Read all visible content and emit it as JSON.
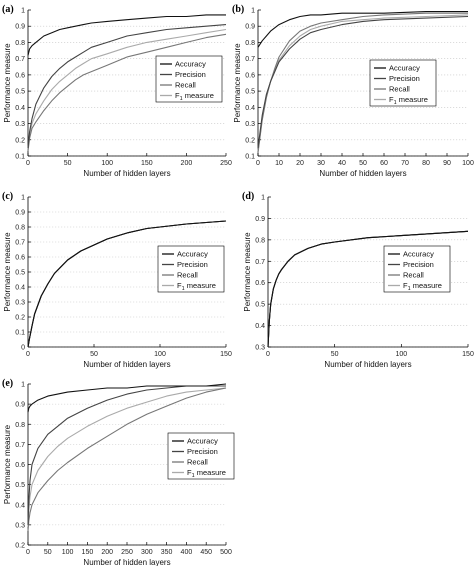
{
  "chart_data": [
    {
      "panel": "(a)",
      "type": "line",
      "xlabel": "Number of hidden layers",
      "ylabel": "Performance measure",
      "xlim": [
        0,
        250
      ],
      "ylim": [
        0.1,
        1.0
      ],
      "xticks": [
        "0",
        "50",
        "100",
        "150",
        "200",
        "250"
      ],
      "yticks": [
        "0.1",
        "0.2",
        "0.3",
        "0.4",
        "0.5",
        "0.6",
        "0.7",
        "0.8",
        "0.9",
        "1"
      ],
      "grid": "horizontal dotted",
      "legend": "right",
      "series": [
        {
          "name": "Accuracy",
          "color": "#111111",
          "x": [
            0,
            2,
            5,
            10,
            20,
            30,
            40,
            50,
            60,
            70,
            80,
            100,
            125,
            150,
            175,
            200,
            225,
            250
          ],
          "y": [
            0.72,
            0.76,
            0.78,
            0.8,
            0.84,
            0.86,
            0.88,
            0.89,
            0.9,
            0.91,
            0.92,
            0.93,
            0.94,
            0.95,
            0.96,
            0.96,
            0.97,
            0.97
          ]
        },
        {
          "name": "Precision",
          "color": "#444444",
          "x": [
            0,
            2,
            5,
            10,
            20,
            30,
            40,
            50,
            60,
            70,
            80,
            100,
            125,
            150,
            175,
            200,
            225,
            250
          ],
          "y": [
            0.15,
            0.25,
            0.33,
            0.42,
            0.52,
            0.59,
            0.64,
            0.68,
            0.71,
            0.74,
            0.77,
            0.8,
            0.84,
            0.86,
            0.88,
            0.89,
            0.9,
            0.91
          ]
        },
        {
          "name": "Recall",
          "color": "#777777",
          "x": [
            0,
            2,
            5,
            10,
            20,
            30,
            40,
            50,
            60,
            70,
            80,
            100,
            125,
            150,
            175,
            200,
            225,
            250
          ],
          "y": [
            0.13,
            0.21,
            0.27,
            0.31,
            0.38,
            0.44,
            0.49,
            0.53,
            0.57,
            0.6,
            0.62,
            0.66,
            0.71,
            0.74,
            0.77,
            0.8,
            0.83,
            0.85
          ]
        },
        {
          "name": "F1 measure",
          "color": "#aaaaaa",
          "x": [
            0,
            2,
            5,
            10,
            20,
            30,
            40,
            50,
            60,
            70,
            80,
            100,
            125,
            150,
            175,
            200,
            225,
            250
          ],
          "y": [
            0.14,
            0.23,
            0.3,
            0.36,
            0.44,
            0.51,
            0.56,
            0.6,
            0.64,
            0.67,
            0.7,
            0.73,
            0.77,
            0.8,
            0.82,
            0.84,
            0.86,
            0.88
          ]
        }
      ]
    },
    {
      "panel": "(b)",
      "type": "line",
      "xlabel": "Number of hidden layers",
      "ylabel": "Performance measure",
      "xlim": [
        0,
        100
      ],
      "ylim": [
        0.1,
        1.0
      ],
      "xticks": [
        "0",
        "10",
        "20",
        "30",
        "40",
        "50",
        "60",
        "70",
        "80",
        "90",
        "100"
      ],
      "yticks": [
        "0.1",
        "0.2",
        "0.3",
        "0.4",
        "0.5",
        "0.6",
        "0.7",
        "0.8",
        "0.9",
        "1"
      ],
      "grid": "horizontal dotted",
      "legend": "right",
      "series": [
        {
          "name": "Accuracy",
          "color": "#111111",
          "x": [
            0,
            1,
            2,
            4,
            6,
            8,
            10,
            15,
            20,
            25,
            30,
            40,
            50,
            60,
            80,
            100
          ],
          "y": [
            0.77,
            0.79,
            0.81,
            0.84,
            0.87,
            0.89,
            0.91,
            0.94,
            0.96,
            0.97,
            0.97,
            0.98,
            0.98,
            0.98,
            0.99,
            0.99
          ]
        },
        {
          "name": "Precision",
          "color": "#444444",
          "x": [
            0,
            1,
            2,
            4,
            6,
            8,
            10,
            15,
            20,
            25,
            30,
            40,
            50,
            60,
            80,
            100
          ],
          "y": [
            0.15,
            0.25,
            0.35,
            0.48,
            0.56,
            0.62,
            0.68,
            0.76,
            0.82,
            0.86,
            0.88,
            0.91,
            0.93,
            0.94,
            0.95,
            0.96
          ]
        },
        {
          "name": "Recall",
          "color": "#777777",
          "x": [
            0,
            1,
            2,
            4,
            6,
            8,
            10,
            15,
            20,
            25,
            30,
            40,
            50,
            60,
            80,
            100
          ],
          "y": [
            0.12,
            0.22,
            0.32,
            0.46,
            0.56,
            0.64,
            0.71,
            0.81,
            0.87,
            0.9,
            0.92,
            0.94,
            0.96,
            0.97,
            0.98,
            0.98
          ]
        },
        {
          "name": "F1 measure",
          "color": "#aaaaaa",
          "x": [
            0,
            1,
            2,
            4,
            6,
            8,
            10,
            15,
            20,
            25,
            30,
            40,
            50,
            60,
            80,
            100
          ],
          "y": [
            0.13,
            0.23,
            0.33,
            0.47,
            0.56,
            0.63,
            0.69,
            0.78,
            0.84,
            0.88,
            0.9,
            0.93,
            0.94,
            0.95,
            0.96,
            0.97
          ]
        }
      ]
    },
    {
      "panel": "(c)",
      "type": "line",
      "xlabel": "Number of hidden layers",
      "ylabel": "Performance measure",
      "xlim": [
        0,
        150
      ],
      "ylim": [
        0.0,
        1.0
      ],
      "xticks": [
        "0",
        "50",
        "100",
        "150"
      ],
      "yticks": [
        "0",
        "0.1",
        "0.2",
        "0.3",
        "0.4",
        "0.5",
        "0.6",
        "0.7",
        "0.8",
        "0.9",
        "1"
      ],
      "grid": "horizontal dotted",
      "legend": "right",
      "series": [
        {
          "name": "Accuracy",
          "color": "#111111",
          "x": [
            0,
            1,
            3,
            5,
            10,
            15,
            20,
            30,
            40,
            50,
            60,
            75,
            90,
            100,
            120,
            150
          ],
          "y": [
            0.0,
            0.05,
            0.14,
            0.22,
            0.34,
            0.42,
            0.49,
            0.58,
            0.64,
            0.68,
            0.72,
            0.76,
            0.79,
            0.8,
            0.82,
            0.84
          ]
        },
        {
          "name": "Precision",
          "color": "#444444",
          "x": [
            0,
            1,
            3,
            5,
            10,
            15,
            20,
            30,
            40,
            50,
            60,
            75,
            90,
            100,
            120,
            150
          ],
          "y": [
            0.0,
            0.05,
            0.14,
            0.22,
            0.34,
            0.42,
            0.49,
            0.58,
            0.64,
            0.68,
            0.72,
            0.76,
            0.79,
            0.8,
            0.82,
            0.84
          ]
        },
        {
          "name": "Recall",
          "color": "#777777",
          "x": [
            0,
            1,
            3,
            5,
            10,
            15,
            20,
            30,
            40,
            50,
            60,
            75,
            90,
            100,
            120,
            150
          ],
          "y": [
            0.0,
            0.05,
            0.14,
            0.22,
            0.34,
            0.42,
            0.49,
            0.58,
            0.64,
            0.68,
            0.72,
            0.76,
            0.79,
            0.8,
            0.82,
            0.84
          ]
        },
        {
          "name": "F1 measure",
          "color": "#aaaaaa",
          "x": [
            0,
            1,
            3,
            5,
            10,
            15,
            20,
            30,
            40,
            50,
            60,
            75,
            90,
            100,
            120,
            150
          ],
          "y": [
            0.0,
            0.05,
            0.14,
            0.22,
            0.34,
            0.42,
            0.49,
            0.58,
            0.64,
            0.68,
            0.72,
            0.76,
            0.79,
            0.8,
            0.82,
            0.84
          ]
        }
      ]
    },
    {
      "panel": "(d)",
      "type": "line",
      "xlabel": "Number of hidden layers",
      "ylabel": "Performance measure",
      "xlim": [
        0,
        150
      ],
      "ylim": [
        0.3,
        1.0
      ],
      "xticks": [
        "0",
        "50",
        "100",
        "150"
      ],
      "yticks": [
        "0.3",
        "0.4",
        "0.5",
        "0.6",
        "0.7",
        "0.8",
        "0.9",
        "1"
      ],
      "grid": "horizontal dotted",
      "legend": "right",
      "series": [
        {
          "name": "Accuracy",
          "color": "#111111",
          "x": [
            0,
            1,
            2,
            4,
            6,
            8,
            10,
            15,
            20,
            30,
            40,
            50,
            75,
            100,
            125,
            150
          ],
          "y": [
            0.3,
            0.42,
            0.5,
            0.57,
            0.61,
            0.64,
            0.66,
            0.7,
            0.73,
            0.76,
            0.78,
            0.79,
            0.81,
            0.82,
            0.83,
            0.84
          ]
        },
        {
          "name": "Precision",
          "color": "#444444",
          "x": [
            0,
            1,
            2,
            4,
            6,
            8,
            10,
            15,
            20,
            30,
            40,
            50,
            75,
            100,
            125,
            150
          ],
          "y": [
            0.3,
            0.42,
            0.5,
            0.57,
            0.61,
            0.64,
            0.66,
            0.7,
            0.73,
            0.76,
            0.78,
            0.79,
            0.81,
            0.82,
            0.83,
            0.84
          ]
        },
        {
          "name": "Recall",
          "color": "#777777",
          "x": [
            0,
            1,
            2,
            4,
            6,
            8,
            10,
            15,
            20,
            30,
            40,
            50,
            75,
            100,
            125,
            150
          ],
          "y": [
            0.3,
            0.42,
            0.5,
            0.57,
            0.61,
            0.64,
            0.66,
            0.7,
            0.73,
            0.76,
            0.78,
            0.79,
            0.81,
            0.82,
            0.83,
            0.84
          ]
        },
        {
          "name": "F1 measure",
          "color": "#aaaaaa",
          "x": [
            0,
            1,
            2,
            4,
            6,
            8,
            10,
            15,
            20,
            30,
            40,
            50,
            75,
            100,
            125,
            150
          ],
          "y": [
            0.3,
            0.42,
            0.5,
            0.57,
            0.61,
            0.64,
            0.66,
            0.7,
            0.73,
            0.76,
            0.78,
            0.79,
            0.81,
            0.82,
            0.83,
            0.84
          ]
        }
      ]
    },
    {
      "panel": "(e)",
      "type": "line",
      "xlabel": "Number of hidden layers",
      "ylabel": "Performance measure",
      "xlim": [
        0,
        500
      ],
      "ylim": [
        0.2,
        1.0
      ],
      "xticks": [
        "0",
        "50",
        "100",
        "150",
        "200",
        "250",
        "300",
        "350",
        "400",
        "450",
        "500"
      ],
      "yticks": [
        "0.2",
        "0.3",
        "0.4",
        "0.5",
        "0.6",
        "0.7",
        "0.8",
        "0.9",
        "1"
      ],
      "grid": "horizontal dotted",
      "legend": "right",
      "series": [
        {
          "name": "Accuracy",
          "color": "#111111",
          "x": [
            0,
            2,
            5,
            10,
            25,
            50,
            75,
            100,
            150,
            200,
            250,
            300,
            350,
            400,
            450,
            500
          ],
          "y": [
            0.86,
            0.88,
            0.89,
            0.9,
            0.92,
            0.94,
            0.95,
            0.96,
            0.97,
            0.98,
            0.98,
            0.99,
            0.99,
            0.99,
            0.99,
            1.0
          ]
        },
        {
          "name": "Precision",
          "color": "#444444",
          "x": [
            0,
            2,
            5,
            10,
            25,
            50,
            75,
            100,
            150,
            200,
            250,
            300,
            350,
            400,
            450,
            500
          ],
          "y": [
            0.3,
            0.42,
            0.52,
            0.6,
            0.68,
            0.75,
            0.79,
            0.83,
            0.88,
            0.92,
            0.95,
            0.97,
            0.98,
            0.99,
            0.99,
            0.99
          ]
        },
        {
          "name": "Recall",
          "color": "#777777",
          "x": [
            0,
            2,
            5,
            10,
            25,
            50,
            75,
            100,
            150,
            200,
            250,
            300,
            350,
            400,
            450,
            500
          ],
          "y": [
            0.27,
            0.32,
            0.36,
            0.4,
            0.46,
            0.52,
            0.57,
            0.61,
            0.68,
            0.74,
            0.8,
            0.85,
            0.89,
            0.93,
            0.96,
            0.98
          ]
        },
        {
          "name": "F1 measure",
          "color": "#aaaaaa",
          "x": [
            0,
            2,
            5,
            10,
            25,
            50,
            75,
            100,
            150,
            200,
            250,
            300,
            350,
            400,
            450,
            500
          ],
          "y": [
            0.29,
            0.37,
            0.44,
            0.5,
            0.57,
            0.64,
            0.69,
            0.73,
            0.79,
            0.84,
            0.88,
            0.91,
            0.94,
            0.96,
            0.97,
            0.98
          ]
        }
      ]
    }
  ],
  "legend_labels": [
    "Accuracy",
    "Precision",
    "Recall",
    "F",
    "1",
    " measure"
  ]
}
